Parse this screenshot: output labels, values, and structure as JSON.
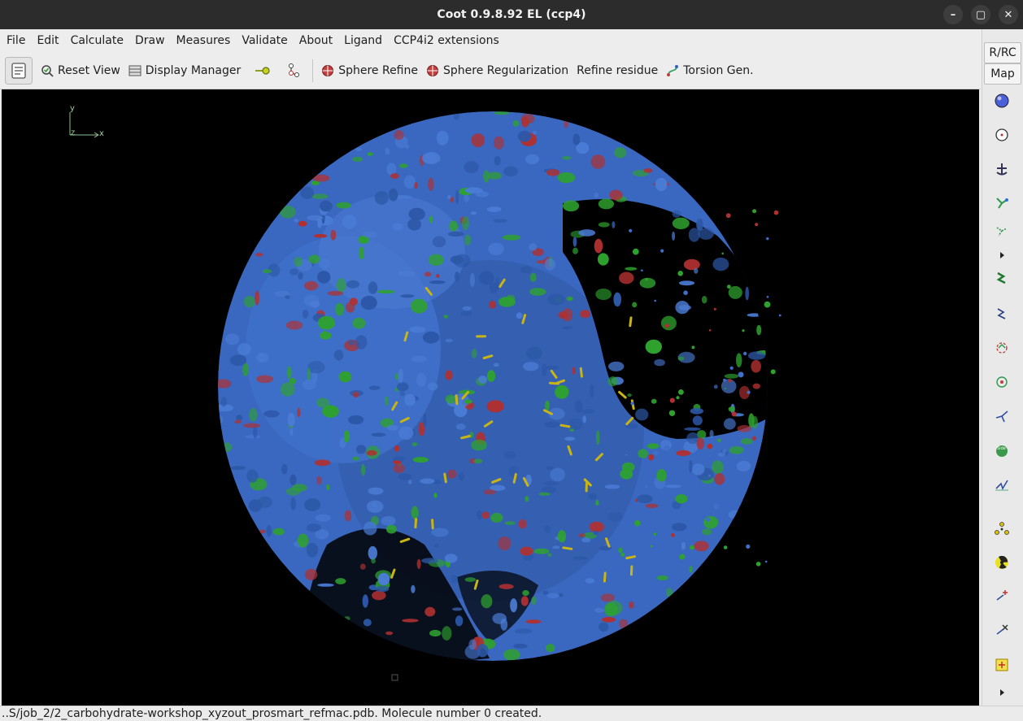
{
  "window": {
    "title": "Coot 0.9.8.92 EL (ccp4)",
    "minimize": "–",
    "maximize": "▢",
    "close": "✕"
  },
  "menu": [
    "File",
    "Edit",
    "Calculate",
    "Draw",
    "Measures",
    "Validate",
    "About",
    "Ligand",
    "CCP4i2 extensions"
  ],
  "toolbar": {
    "reset_view": "Reset View",
    "display_manager": "Display Manager",
    "sphere_refine": "Sphere Refine",
    "sphere_regularization": "Sphere Regularization",
    "refine_residue": "Refine residue",
    "torsion_gen": "Torsion Gen."
  },
  "right_toolbar": {
    "rrc": "R/RC",
    "map": "Map"
  },
  "axes": {
    "y": "y",
    "z": "z",
    "x": "x"
  },
  "status": "..S/job_2/2_carbohydrate-workshop_xyzout_prosmart_refmac.pdb. Molecule number 0 created.",
  "colors": {
    "map_blue": "#3f6fc8",
    "map_green": "#2ea12e",
    "map_red": "#b03030",
    "ligand_yellow": "#c8b414",
    "background": "#000000"
  }
}
